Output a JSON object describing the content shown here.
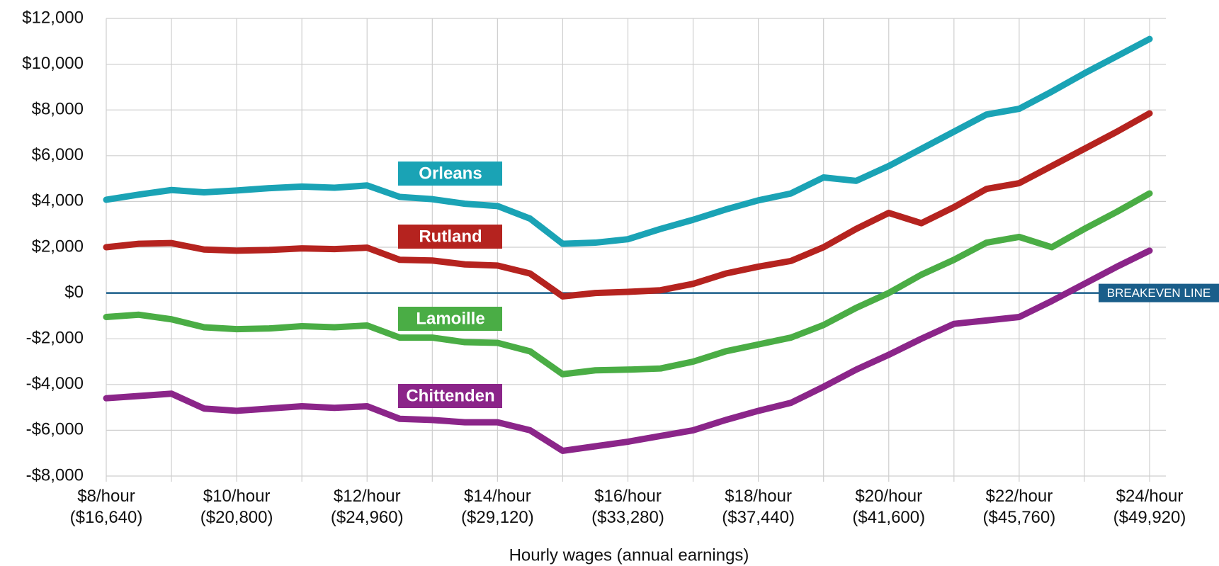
{
  "chart_data": {
    "type": "line",
    "x_axis_label": "Hourly wages (annual earnings)",
    "x": [
      8,
      8.5,
      9,
      9.5,
      10,
      10.5,
      11,
      11.5,
      12,
      12.5,
      13,
      13.5,
      14,
      14.5,
      15,
      15.5,
      16,
      16.5,
      17,
      17.5,
      18,
      18.5,
      19,
      19.5,
      20,
      20.5,
      21,
      21.5,
      22,
      22.5,
      23,
      23.5,
      24
    ],
    "series": [
      {
        "name": "Orleans",
        "color": "#1aa3b5",
        "values": [
          4075,
          4300,
          4500,
          4400,
          4480,
          4580,
          4650,
          4600,
          4700,
          4200,
          4100,
          3900,
          3800,
          3250,
          2150,
          2200,
          2350,
          2800,
          3200,
          3650,
          4050,
          4350,
          5050,
          4900,
          5550,
          6300,
          7050,
          7800,
          8050,
          8800,
          9600,
          10350,
          11100
        ]
      },
      {
        "name": "Rutland",
        "color": "#b5231f",
        "values": [
          2000,
          2150,
          2180,
          1900,
          1850,
          1880,
          1950,
          1920,
          1980,
          1450,
          1420,
          1250,
          1200,
          850,
          -150,
          0,
          50,
          120,
          400,
          850,
          1150,
          1400,
          2000,
          2800,
          3500,
          3050,
          3750,
          4550,
          4800,
          5550,
          6300,
          7050,
          7850
        ]
      },
      {
        "name": "Lamoille",
        "color": "#4aad45",
        "values": [
          -1050,
          -950,
          -1150,
          -1500,
          -1580,
          -1550,
          -1450,
          -1500,
          -1420,
          -1950,
          -1950,
          -2150,
          -2180,
          -2550,
          -3550,
          -3380,
          -3350,
          -3300,
          -3000,
          -2550,
          -2250,
          -1950,
          -1400,
          -650,
          0,
          800,
          1450,
          2200,
          2450,
          2000,
          2800,
          3550,
          4350
        ]
      },
      {
        "name": "Chittenden",
        "color": "#8b2589",
        "values": [
          -4600,
          -4500,
          -4400,
          -5050,
          -5150,
          -5050,
          -4950,
          -5020,
          -4950,
          -5500,
          -5550,
          -5650,
          -5650,
          -6000,
          -6900,
          -6700,
          -6500,
          -6250,
          -6000,
          -5550,
          -5150,
          -4800,
          -4100,
          -3350,
          -2700,
          -2000,
          -1350,
          -1200,
          -1050,
          -350,
          400,
          1150,
          1850
        ]
      }
    ],
    "xlim": [
      8,
      24
    ],
    "xticks": [
      {
        "value": 8,
        "label": "$8/hour\n($16,640)"
      },
      {
        "value": 10,
        "label": "$10/hour\n($20,800)"
      },
      {
        "value": 12,
        "label": "$12/hour\n($24,960)"
      },
      {
        "value": 14,
        "label": "$14/hour\n($29,120)"
      },
      {
        "value": 16,
        "label": "$16/hour\n($33,280)"
      },
      {
        "value": 18,
        "label": "$18/hour\n($37,440)"
      },
      {
        "value": 20,
        "label": "$20/hour\n($41,600)"
      },
      {
        "value": 22,
        "label": "$22/hour\n($45,760)"
      },
      {
        "value": 24,
        "label": "$24/hour\n($49,920)"
      }
    ],
    "x_minor_ticks": [
      9,
      11,
      13,
      15,
      17,
      19,
      21,
      23
    ],
    "ylim": [
      -8000,
      12000
    ],
    "yticks": [
      {
        "value": -8000,
        "label": "-$8,000"
      },
      {
        "value": -6000,
        "label": "-$6,000"
      },
      {
        "value": -4000,
        "label": "-$4,000"
      },
      {
        "value": -2000,
        "label": "-$2,000"
      },
      {
        "value": 0,
        "label": "$0"
      },
      {
        "value": 2000,
        "label": "$2,000"
      },
      {
        "value": 4000,
        "label": "$4,000"
      },
      {
        "value": 6000,
        "label": "$6,000"
      },
      {
        "value": 8000,
        "label": "$8,000"
      },
      {
        "value": 10000,
        "label": "$10,000"
      },
      {
        "value": 12000,
        "label": "$12,000"
      }
    ],
    "grid": true,
    "reference_line": {
      "value": 0,
      "label": "BREAKEVEN LINE",
      "color": "#1a5e8a"
    }
  }
}
